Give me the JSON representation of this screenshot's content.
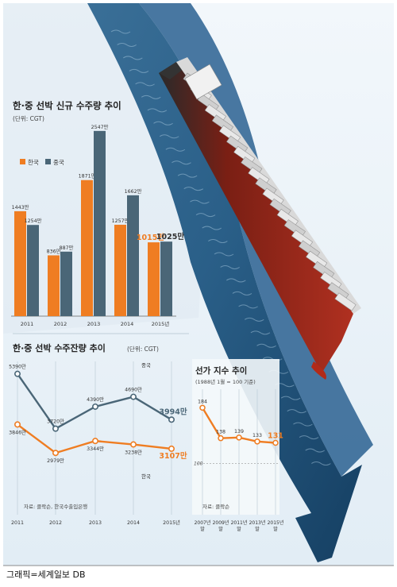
{
  "credit": "그래픽=세계일보 DB",
  "colors": {
    "korea": "#ef7d22",
    "china": "#4a6677",
    "arrow": "#1f5578",
    "sea_dark": "#1e4f78",
    "sea_light": "#8fb3cc",
    "hull": "#8e2418"
  },
  "chart_data": [
    {
      "type": "bar",
      "title": "한·중 선박 신규 수주량 추이",
      "unit": "(단위: CGT)",
      "categories": [
        "2011",
        "2012",
        "2013",
        "2014",
        "2015년"
      ],
      "series": [
        {
          "name": "한국",
          "values": [
            1443,
            836,
            1871,
            1257,
            1015
          ],
          "labels": [
            "1443만",
            "836만",
            "1871만",
            "1257만",
            "1015만"
          ]
        },
        {
          "name": "중국",
          "values": [
            1254,
            887,
            2547,
            1662,
            1025
          ],
          "labels": [
            "1254만",
            "887만",
            "2547만",
            "1662만",
            "1025만"
          ]
        }
      ],
      "ylim": [
        0,
        2600
      ],
      "legend": "top-left"
    },
    {
      "type": "line",
      "title": "한·중 선박 수주잔량 추이",
      "unit": "(단위: CGT)",
      "categories": [
        "2011",
        "2012",
        "2013",
        "2014",
        "2015년"
      ],
      "series": [
        {
          "name": "중국",
          "values": [
            5390,
            3720,
            4390,
            4690,
            3994
          ],
          "labels": [
            "5390만",
            "3720만",
            "4390만",
            "4690만",
            "3994만"
          ]
        },
        {
          "name": "한국",
          "values": [
            3846,
            2979,
            3344,
            3238,
            3107
          ],
          "labels": [
            "3846만",
            "2979만",
            "3344만",
            "3238만",
            "3107만"
          ]
        }
      ],
      "ylim": [
        2500,
        5600
      ],
      "source": "자료: 클락슨, 한국수출입은행"
    },
    {
      "type": "line",
      "title": "선가 지수 추이",
      "subtitle": "(1988년 1월 = 100 기준)",
      "categories": [
        {
          "year": "2007년",
          "month": "말"
        },
        {
          "year": "2009년",
          "month": "말"
        },
        {
          "year": "2011년",
          "month": "말"
        },
        {
          "year": "2013년",
          "month": "말"
        },
        {
          "year": "2015년",
          "month": "말"
        }
      ],
      "series": [
        {
          "values": [
            184,
            138,
            139,
            133,
            131
          ],
          "labels": [
            "184",
            "138",
            "139",
            "133",
            "131"
          ]
        }
      ],
      "reference_line": {
        "value": 100,
        "label": "100"
      },
      "ylim": [
        80,
        200
      ],
      "source": "자료: 클락슨"
    }
  ]
}
